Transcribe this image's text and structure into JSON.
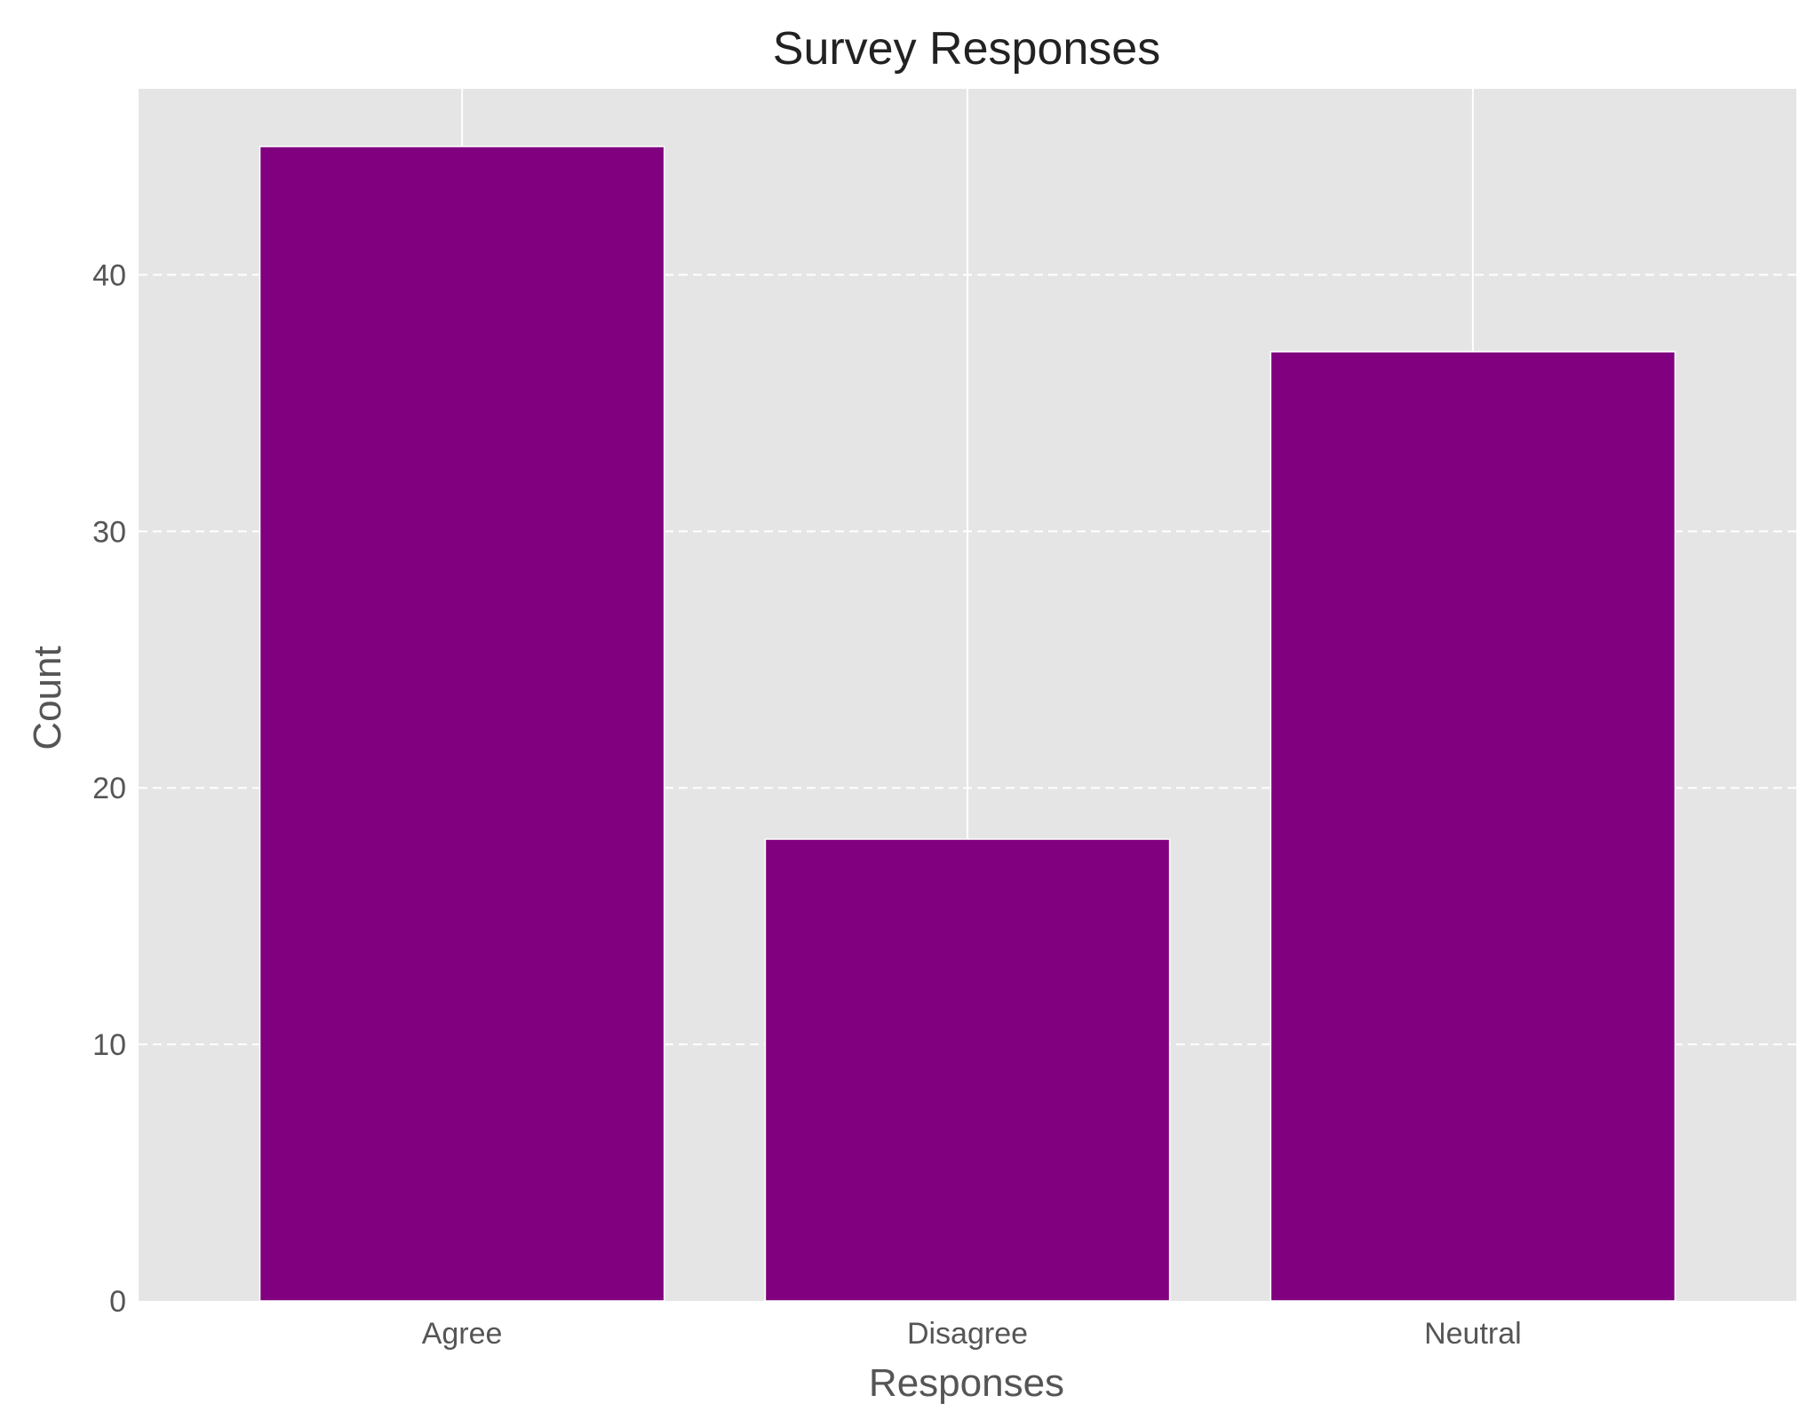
{
  "chart_data": {
    "type": "bar",
    "title": "Survey Responses",
    "xlabel": "Responses",
    "ylabel": "Count",
    "categories": [
      "Agree",
      "Disagree",
      "Neutral"
    ],
    "values": [
      45,
      18,
      37
    ],
    "ylim": [
      0,
      47.25
    ],
    "yticks": [
      0,
      10,
      20,
      30,
      40
    ],
    "grid": true,
    "colors": {
      "bar": "#800080",
      "plot_background": "#e5e5e5",
      "grid": "#ffffff"
    }
  }
}
